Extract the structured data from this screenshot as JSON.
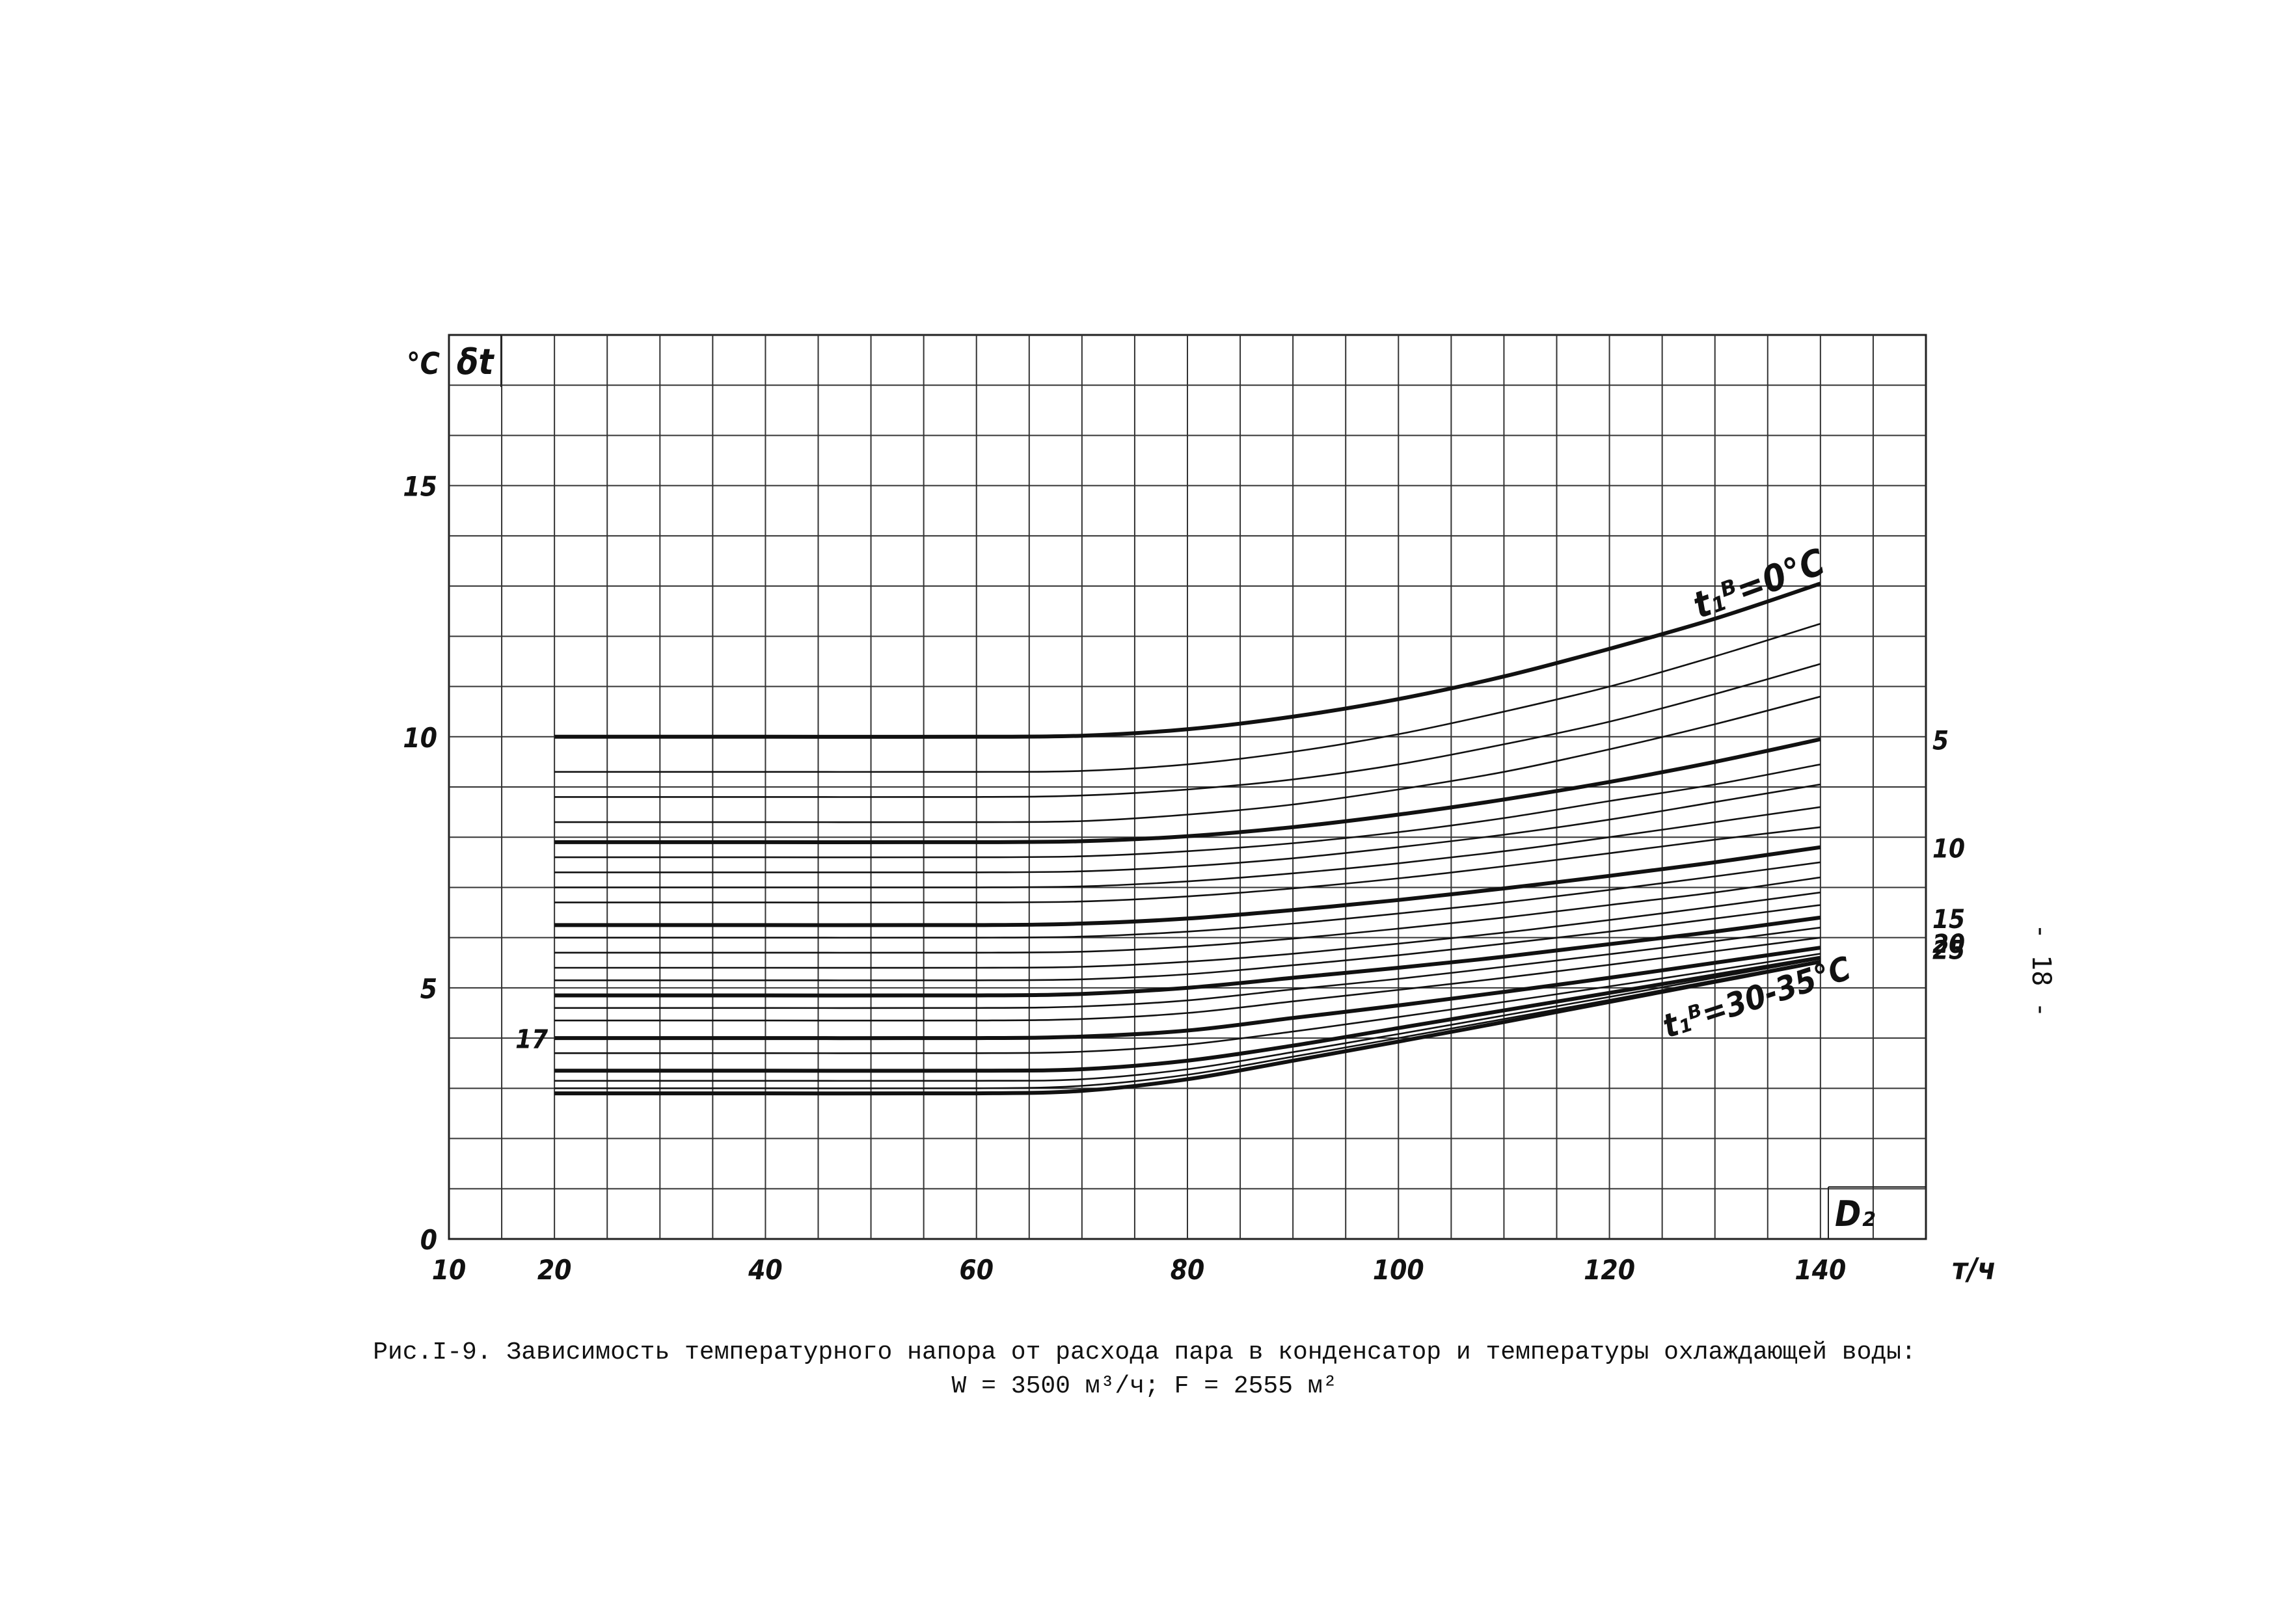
{
  "chart_data": {
    "type": "line",
    "ylabel_unit": "°C",
    "ylabel_symbol": "δt",
    "xlabel_symbol": "D₂",
    "xlabel_unit": "т/ч",
    "xlim": [
      10,
      150
    ],
    "ylim": [
      0,
      18
    ],
    "x_ticks": [
      10,
      20,
      40,
      60,
      80,
      100,
      120,
      140
    ],
    "y_ticks": [
      0,
      5,
      10,
      15
    ],
    "grid": true,
    "x": [
      20,
      40,
      60,
      70,
      80,
      90,
      100,
      110,
      120,
      130,
      140
    ],
    "series": [
      {
        "name": "0",
        "values": [
          10.0,
          10.0,
          10.0,
          10.02,
          10.15,
          10.4,
          10.75,
          11.2,
          11.75,
          12.35,
          13.05
        ]
      },
      {
        "name": "",
        "values": [
          9.3,
          9.3,
          9.3,
          9.32,
          9.45,
          9.7,
          10.05,
          10.5,
          11.0,
          11.6,
          12.25
        ]
      },
      {
        "name": "",
        "values": [
          8.8,
          8.8,
          8.8,
          8.83,
          8.95,
          9.15,
          9.45,
          9.85,
          10.3,
          10.85,
          11.45
        ]
      },
      {
        "name": "",
        "values": [
          8.3,
          8.3,
          8.3,
          8.32,
          8.45,
          8.65,
          8.95,
          9.3,
          9.75,
          10.25,
          10.8
        ]
      },
      {
        "name": "5",
        "values": [
          7.9,
          7.9,
          7.9,
          7.92,
          8.02,
          8.2,
          8.45,
          8.75,
          9.1,
          9.5,
          9.95
        ]
      },
      {
        "name": "",
        "values": [
          7.6,
          7.6,
          7.6,
          7.62,
          7.72,
          7.88,
          8.1,
          8.38,
          8.72,
          9.05,
          9.45
        ]
      },
      {
        "name": "",
        "values": [
          7.3,
          7.3,
          7.3,
          7.32,
          7.42,
          7.58,
          7.8,
          8.05,
          8.35,
          8.7,
          9.05
        ]
      },
      {
        "name": "",
        "values": [
          7.0,
          7.0,
          7.0,
          7.02,
          7.12,
          7.28,
          7.48,
          7.72,
          8.0,
          8.3,
          8.6
        ]
      },
      {
        "name": "",
        "values": [
          6.7,
          6.7,
          6.7,
          6.72,
          6.82,
          6.98,
          7.18,
          7.42,
          7.68,
          7.95,
          8.2
        ]
      },
      {
        "name": "10",
        "values": [
          6.25,
          6.25,
          6.25,
          6.28,
          6.38,
          6.55,
          6.75,
          6.98,
          7.23,
          7.5,
          7.8
        ]
      },
      {
        "name": "",
        "values": [
          6.0,
          6.0,
          6.0,
          6.02,
          6.12,
          6.28,
          6.48,
          6.7,
          6.95,
          7.22,
          7.5
        ]
      },
      {
        "name": "",
        "values": [
          5.7,
          5.7,
          5.7,
          5.72,
          5.82,
          5.98,
          6.18,
          6.4,
          6.65,
          6.9,
          7.2
        ]
      },
      {
        "name": "",
        "values": [
          5.4,
          5.4,
          5.4,
          5.42,
          5.52,
          5.68,
          5.88,
          6.1,
          6.35,
          6.62,
          6.9
        ]
      },
      {
        "name": "",
        "values": [
          5.15,
          5.15,
          5.15,
          5.17,
          5.27,
          5.45,
          5.65,
          5.88,
          6.12,
          6.38,
          6.65
        ]
      },
      {
        "name": "15",
        "values": [
          4.85,
          4.85,
          4.85,
          4.88,
          5.0,
          5.2,
          5.4,
          5.62,
          5.87,
          6.12,
          6.4
        ]
      },
      {
        "name": "",
        "values": [
          4.6,
          4.6,
          4.6,
          4.63,
          4.75,
          4.97,
          5.18,
          5.42,
          5.67,
          5.93,
          6.2
        ]
      },
      {
        "name": "",
        "values": [
          4.35,
          4.35,
          4.35,
          4.38,
          4.5,
          4.73,
          4.96,
          5.2,
          5.46,
          5.73,
          6.0
        ]
      },
      {
        "name": "20",
        "values": [
          4.0,
          4.0,
          4.0,
          4.03,
          4.15,
          4.4,
          4.65,
          4.92,
          5.2,
          5.5,
          5.8
        ]
      },
      {
        "name": "",
        "values": [
          3.7,
          3.7,
          3.7,
          3.73,
          3.87,
          4.13,
          4.42,
          4.72,
          5.03,
          5.35,
          5.68
        ]
      },
      {
        "name": "25",
        "values": [
          3.35,
          3.35,
          3.35,
          3.38,
          3.55,
          3.85,
          4.2,
          4.55,
          4.9,
          5.25,
          5.6
        ]
      },
      {
        "name": "",
        "values": [
          3.15,
          3.15,
          3.15,
          3.18,
          3.38,
          3.72,
          4.08,
          4.45,
          4.82,
          5.2,
          5.58
        ]
      },
      {
        "name": "",
        "values": [
          3.0,
          3.0,
          3.0,
          3.05,
          3.27,
          3.63,
          4.0,
          4.38,
          4.76,
          5.15,
          5.54
        ]
      },
      {
        "name": "30-35",
        "values": [
          2.9,
          2.9,
          2.9,
          2.95,
          3.18,
          3.55,
          3.93,
          4.32,
          4.72,
          5.12,
          5.52
        ]
      }
    ],
    "thick_series_indices": [
      0,
      4,
      9,
      14,
      17,
      19,
      22
    ],
    "curve_labels": [
      {
        "text": "5",
        "series": 4
      },
      {
        "text": "10",
        "series": 9
      },
      {
        "text": "15",
        "series": 14
      },
      {
        "text": "20",
        "series": 17
      },
      {
        "text": "25",
        "series": 19
      }
    ],
    "annotation_top": "t₁ᴮ=0°C",
    "annotation_bottom": "t₁ᴮ=30-35°C",
    "left_label": "17"
  },
  "caption": {
    "line1": "Рис.I-9. Зависимость температурного напора от расхода пара в конденсатор и температуры охлаждающей воды:",
    "line2": "W = 3500 м³/ч;   F = 2555 м²"
  },
  "page_number": "- 18 -"
}
